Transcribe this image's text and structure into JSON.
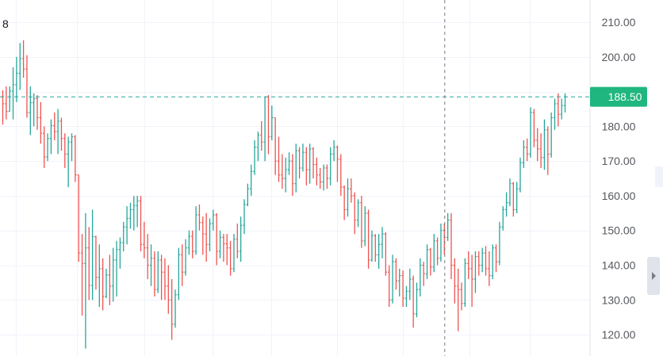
{
  "corner_label": "8",
  "colors": {
    "up": "#26a69a",
    "down": "#ef5350",
    "grid": "#f0f3fa",
    "crosshair": "#787b86",
    "price_line": "#26a69a",
    "price_tag_bg": "#1fb67f",
    "axis_text": "#56595f"
  },
  "price_axis": {
    "ticks": [
      "210.00",
      "200.00",
      "180.00",
      "170.00",
      "160.00",
      "150.00",
      "140.00",
      "130.00",
      "120.00"
    ]
  },
  "price_tag": {
    "label": "188.50"
  },
  "scroll_handle": {
    "icon": "chevron-right-icon"
  },
  "chart_data": {
    "type": "candlestick",
    "title": "",
    "ylim": [
      113.85,
      216.4
    ],
    "grid": true,
    "hline": 188.5,
    "crosshair_index": 128,
    "y_ticks": [
      210,
      200,
      180,
      170,
      160,
      150,
      140,
      130,
      120
    ],
    "bars": [
      [
        188.5,
        190.4,
        180.5,
        186.5
      ],
      [
        186.5,
        191.5,
        182,
        184.3
      ],
      [
        184.3,
        191.5,
        184.3,
        190.2
      ],
      [
        190.2,
        197,
        182,
        192
      ],
      [
        192,
        200,
        187,
        195.3
      ],
      [
        195.3,
        204,
        190.5,
        199.5
      ],
      [
        199.5,
        204.8,
        194,
        196.5
      ],
      [
        196.5,
        200.5,
        182.5,
        184
      ],
      [
        184,
        191.5,
        177.5,
        186.8
      ],
      [
        186.8,
        189.5,
        180,
        188
      ],
      [
        188,
        189,
        179,
        182.5
      ],
      [
        182.5,
        187,
        175,
        178
      ],
      [
        178,
        180,
        168,
        171.2
      ],
      [
        171.2,
        178,
        170,
        176.5
      ],
      [
        176.5,
        182,
        172,
        180.2
      ],
      [
        180.2,
        184,
        176,
        178.5
      ],
      [
        178.5,
        185,
        172,
        181.5
      ],
      [
        181.5,
        182.5,
        173,
        176.5
      ],
      [
        176.5,
        178,
        168,
        172
      ],
      [
        172,
        177,
        162.5,
        175.5
      ],
      [
        175.5,
        178,
        170,
        177
      ],
      [
        177,
        177.5,
        164,
        166
      ],
      [
        166,
        166,
        141,
        143.5
      ],
      [
        143.5,
        149,
        125.5,
        140.5
      ],
      [
        140.5,
        155,
        116,
        145
      ],
      [
        145,
        151,
        130,
        134.2
      ],
      [
        134.2,
        156,
        130,
        148.2
      ],
      [
        148.2,
        148.5,
        133,
        136.5
      ],
      [
        136.5,
        146,
        128,
        139
      ],
      [
        139,
        142,
        127,
        131
      ],
      [
        131,
        139,
        130.5,
        137.2
      ],
      [
        137.2,
        143,
        128.5,
        134
      ],
      [
        134,
        145,
        129.5,
        141.5
      ],
      [
        141.5,
        147,
        131,
        144.5
      ],
      [
        144.5,
        148,
        139,
        146.5
      ],
      [
        146.5,
        152.5,
        144,
        151
      ],
      [
        151,
        157,
        146,
        153.5
      ],
      [
        153.5,
        158,
        150.5,
        156
      ],
      [
        156,
        160,
        150,
        157.2
      ],
      [
        157.2,
        160,
        151,
        158.5
      ],
      [
        158.5,
        160,
        144,
        146
      ],
      [
        146,
        152.5,
        142,
        145
      ],
      [
        145,
        149,
        136,
        140
      ],
      [
        140,
        146,
        134,
        142
      ],
      [
        142,
        144,
        131,
        133
      ],
      [
        133,
        144,
        132,
        141.5
      ],
      [
        141.5,
        143,
        130,
        138
      ],
      [
        138,
        142,
        130,
        134
      ],
      [
        134,
        140,
        126,
        130
      ],
      [
        130,
        136,
        118.5,
        123
      ],
      [
        123,
        133,
        122,
        131.5
      ],
      [
        131.5,
        145,
        130,
        143
      ],
      [
        143,
        146,
        134,
        138
      ],
      [
        138,
        147.5,
        137,
        145
      ],
      [
        145,
        150,
        143,
        148.3
      ],
      [
        148.3,
        150,
        142,
        144
      ],
      [
        144,
        157,
        143,
        154.5
      ],
      [
        154.5,
        157.5,
        150,
        152.3
      ],
      [
        152.3,
        154,
        143,
        149
      ],
      [
        149,
        155,
        141,
        146
      ],
      [
        146,
        153.5,
        144,
        152
      ],
      [
        152,
        156,
        150,
        154.5
      ],
      [
        154.5,
        155,
        140,
        144
      ],
      [
        144,
        150,
        142,
        148
      ],
      [
        148,
        149,
        141,
        146.2
      ],
      [
        146.2,
        149,
        140,
        145
      ],
      [
        145,
        147,
        137,
        139
      ],
      [
        139,
        149,
        138,
        147.5
      ],
      [
        147.5,
        152,
        142,
        144
      ],
      [
        144,
        154,
        141,
        151.5
      ],
      [
        151.5,
        159,
        149,
        157.5
      ],
      [
        157.5,
        163.5,
        157,
        162
      ],
      [
        162,
        169,
        160,
        167
      ],
      [
        167,
        176,
        166,
        174
      ],
      [
        174,
        178.5,
        170,
        177.5
      ],
      [
        177.5,
        181.5,
        173,
        175.5
      ],
      [
        175.5,
        188.5,
        170,
        188.5
      ],
      [
        188.5,
        189,
        172,
        177
      ],
      [
        177,
        186,
        176,
        182.5
      ],
      [
        182.5,
        182.5,
        166,
        170
      ],
      [
        170,
        177,
        164,
        166
      ],
      [
        166,
        172,
        162,
        165
      ],
      [
        165,
        171,
        161,
        167.5
      ],
      [
        167.5,
        172.5,
        166,
        170
      ],
      [
        170,
        172,
        160,
        163.5
      ],
      [
        163.5,
        175,
        161,
        173
      ],
      [
        173,
        174,
        165,
        168
      ],
      [
        168,
        175,
        167,
        172.5
      ],
      [
        172.5,
        174,
        163,
        167.5
      ],
      [
        167.5,
        175,
        163.5,
        173.5
      ],
      [
        173.5,
        174,
        165,
        169
      ],
      [
        169,
        171,
        163,
        166
      ],
      [
        166,
        168,
        162,
        164
      ],
      [
        164,
        169,
        161.5,
        168
      ],
      [
        168,
        169,
        162,
        165
      ],
      [
        165,
        174,
        163,
        172
      ],
      [
        172,
        176,
        170,
        174
      ],
      [
        174,
        174.5,
        164,
        170.5
      ],
      [
        170.5,
        172,
        160,
        162.5
      ],
      [
        162.5,
        163,
        153,
        156
      ],
      [
        156,
        165,
        154,
        162
      ],
      [
        162,
        165,
        158,
        160
      ],
      [
        160,
        161,
        149,
        153
      ],
      [
        153,
        159,
        151,
        158
      ],
      [
        158,
        160,
        145,
        147
      ],
      [
        147,
        157,
        145.5,
        155
      ],
      [
        155,
        156,
        139,
        141.5
      ],
      [
        141.5,
        150,
        141,
        148.5
      ],
      [
        148.5,
        149,
        141,
        143
      ],
      [
        143,
        149,
        139,
        146
      ],
      [
        146,
        151,
        142,
        149
      ],
      [
        149,
        149.5,
        137,
        138
      ],
      [
        138,
        140,
        128,
        130
      ],
      [
        130,
        143,
        129,
        141
      ],
      [
        141,
        142,
        133,
        135.5
      ],
      [
        135.5,
        139,
        131,
        137
      ],
      [
        137,
        138.5,
        128,
        130.5
      ],
      [
        130.5,
        134,
        128,
        132.5
      ],
      [
        132.5,
        139,
        130,
        136
      ],
      [
        136,
        137,
        122,
        126
      ],
      [
        126,
        135,
        125,
        133
      ],
      [
        133,
        142,
        131,
        140
      ],
      [
        140,
        141,
        134,
        137.5
      ],
      [
        137.5,
        146,
        136,
        144.5
      ],
      [
        144.5,
        145,
        137,
        139.5
      ],
      [
        139.5,
        149,
        138,
        147
      ],
      [
        147,
        148,
        140,
        142
      ],
      [
        142,
        152,
        141,
        150
      ],
      [
        150,
        152,
        143,
        148
      ],
      [
        148,
        155,
        147,
        153
      ],
      [
        153,
        155,
        136,
        140
      ],
      [
        140,
        142,
        129,
        134
      ],
      [
        134,
        139,
        121,
        133
      ],
      [
        133,
        135,
        127,
        129
      ],
      [
        129,
        142,
        128,
        140.5
      ],
      [
        140.5,
        144,
        136,
        139
      ],
      [
        139,
        143,
        128,
        136
      ],
      [
        136,
        144,
        132,
        142.5
      ],
      [
        142.5,
        144,
        137,
        140
      ],
      [
        140,
        145,
        138,
        143.5
      ],
      [
        143.5,
        145.5,
        137,
        139
      ],
      [
        139,
        144,
        134,
        137
      ],
      [
        137,
        146,
        136,
        145
      ],
      [
        145,
        146,
        138,
        141
      ],
      [
        141,
        152.5,
        140,
        151
      ],
      [
        151,
        157,
        150,
        156
      ],
      [
        156,
        161,
        154,
        158
      ],
      [
        158,
        165,
        157,
        163.5
      ],
      [
        163.5,
        164,
        154,
        156
      ],
      [
        156,
        164,
        155,
        162
      ],
      [
        162,
        171,
        161,
        169.5
      ],
      [
        169.5,
        176,
        168,
        174
      ],
      [
        174,
        176.5,
        170,
        172
      ],
      [
        172,
        185.5,
        171,
        184
      ],
      [
        184,
        185,
        174,
        176
      ],
      [
        176,
        179.5,
        170,
        173.5
      ],
      [
        173.5,
        178,
        168,
        171
      ],
      [
        171,
        182,
        167.5,
        179
      ],
      [
        179,
        180,
        166,
        172
      ],
      [
        172,
        184,
        171,
        182.5
      ],
      [
        182.5,
        188,
        179,
        186.5
      ],
      [
        186.5,
        189.5,
        180,
        183.5
      ],
      [
        183.5,
        188,
        182,
        186
      ],
      [
        186,
        189.5,
        184,
        188.5
      ]
    ]
  }
}
